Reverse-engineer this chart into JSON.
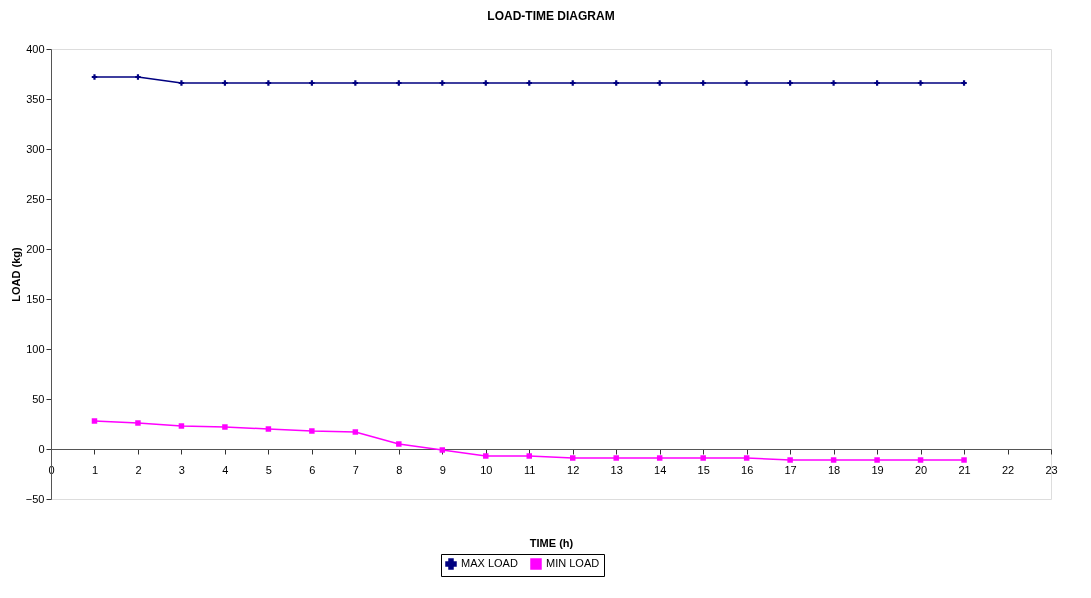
{
  "chart_data": {
    "type": "line",
    "title": "LOAD-TIME DIAGRAM",
    "xlabel": "TIME (h)",
    "ylabel": "LOAD (kg)",
    "x": [
      1,
      2,
      3,
      4,
      5,
      6,
      7,
      8,
      9,
      10,
      11,
      12,
      13,
      14,
      15,
      16,
      17,
      18,
      19,
      20,
      21
    ],
    "series": [
      {
        "name": "MAX LOAD",
        "color": "#000080",
        "marker": "cross",
        "values": [
          372,
          372,
          366,
          366,
          366,
          366,
          366,
          366,
          366,
          366,
          366,
          366,
          366,
          366,
          366,
          366,
          366,
          366,
          366,
          366,
          366
        ]
      },
      {
        "name": "MIN LOAD",
        "color": "#ff00ff",
        "marker": "square",
        "values": [
          28,
          26,
          23,
          22,
          20,
          18,
          17,
          5,
          -1,
          -7,
          -7,
          -9,
          -9,
          -9,
          -9,
          -9,
          -11,
          -11,
          -11,
          -11,
          -11
        ]
      }
    ],
    "xlim": [
      0,
      23
    ],
    "xticks": [
      0,
      1,
      2,
      3,
      4,
      5,
      6,
      7,
      8,
      9,
      10,
      11,
      12,
      13,
      14,
      15,
      16,
      17,
      18,
      19,
      20,
      21,
      22,
      23
    ],
    "ylim": [
      -50,
      400
    ],
    "yticks": [
      -50,
      0,
      50,
      100,
      150,
      200,
      250,
      300,
      350,
      400
    ],
    "grid": false,
    "legend": "bottom",
    "line_style": "solid"
  }
}
